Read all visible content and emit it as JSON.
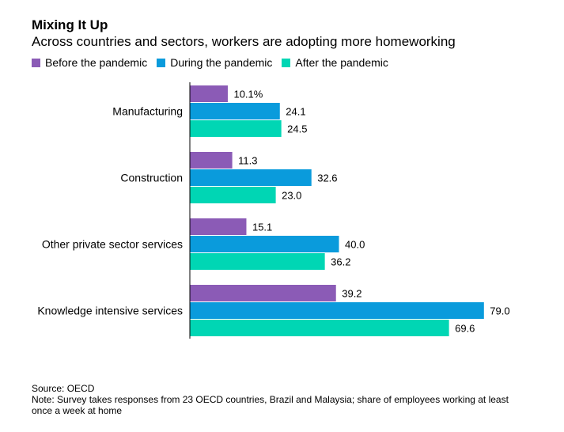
{
  "title": "Mixing It Up",
  "subtitle": "Across countries and sectors, workers are adopting more homeworking",
  "chart_data": {
    "type": "bar",
    "orientation": "horizontal",
    "categories": [
      "Manufacturing",
      "Construction",
      "Other private sector services",
      "Knowledge intensive services"
    ],
    "series": [
      {
        "name": "Before the pandemic",
        "color": "#8b5bb6",
        "values": [
          10.1,
          11.3,
          15.1,
          39.2
        ],
        "labels": [
          "10.1%",
          "11.3",
          "15.1",
          "39.2"
        ]
      },
      {
        "name": "During the pandemic",
        "color": "#0a9bdc",
        "values": [
          24.1,
          32.6,
          40.0,
          79.0
        ],
        "labels": [
          "24.1",
          "32.6",
          "40.0",
          "79.0"
        ]
      },
      {
        "name": "After the pandemic",
        "color": "#00d6b4",
        "values": [
          24.5,
          23.0,
          36.2,
          69.6
        ],
        "labels": [
          "24.5",
          "23.0",
          "36.2",
          "69.6"
        ]
      }
    ],
    "xlim": [
      0,
      80
    ],
    "grid": false,
    "legend_position": "top-left"
  },
  "footer": {
    "source": "Source: OECD",
    "note": "Note: Survey takes responses from 23 OECD countries, Brazil and Malaysia; share of employees working at least once a week at home"
  }
}
